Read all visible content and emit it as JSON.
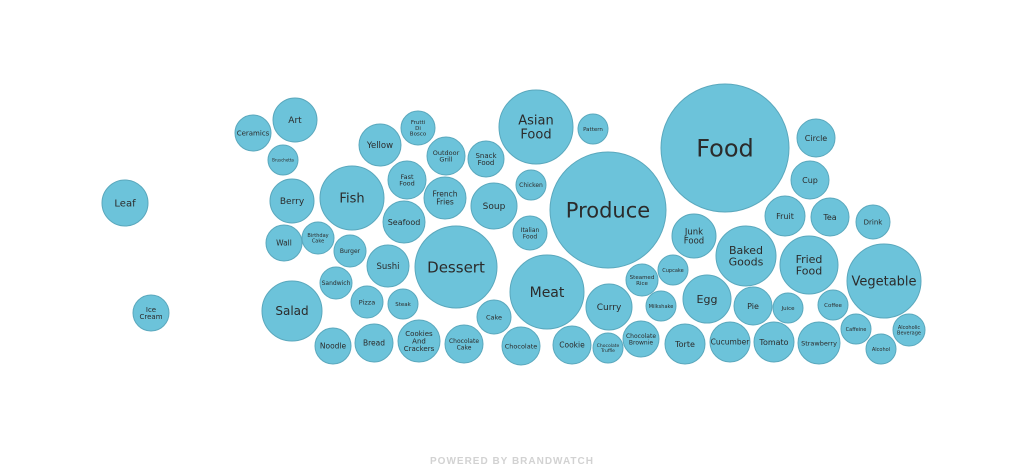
{
  "chart_data": {
    "type": "bubble",
    "color": "#6cc3da",
    "stroke_color": "#5aa8bd",
    "items": [
      {
        "label": "Food"
      },
      {
        "label": "Produce"
      },
      {
        "label": "Vegetable"
      },
      {
        "label": "Dessert"
      },
      {
        "label": "Meat"
      },
      {
        "label": "Asian Food"
      },
      {
        "label": "Fried Food"
      },
      {
        "label": "Baked Goods"
      },
      {
        "label": "Fish"
      },
      {
        "label": "Salad"
      },
      {
        "label": "Egg"
      },
      {
        "label": "Leaf"
      },
      {
        "label": "Circle"
      },
      {
        "label": "Cup"
      },
      {
        "label": "Fruit"
      },
      {
        "label": "Tea"
      },
      {
        "label": "Drink"
      },
      {
        "label": "Junk Food"
      },
      {
        "label": "Soup"
      },
      {
        "label": "Curry"
      },
      {
        "label": "Berry"
      },
      {
        "label": "Seafood"
      },
      {
        "label": "Sushi"
      },
      {
        "label": "French Fries"
      },
      {
        "label": "Yellow"
      },
      {
        "label": "Art"
      },
      {
        "label": "Ceramics"
      },
      {
        "label": "Bruschetta"
      },
      {
        "label": "Frutti Di Bosco"
      },
      {
        "label": "Outdoor Grill"
      },
      {
        "label": "Snack Food"
      },
      {
        "label": "Pattern"
      },
      {
        "label": "Chicken"
      },
      {
        "label": "Italian Food"
      },
      {
        "label": "Fast Food"
      },
      {
        "label": "Wall"
      },
      {
        "label": "Birthday Cake"
      },
      {
        "label": "Burger"
      },
      {
        "label": "Sandwich"
      },
      {
        "label": "Pizza"
      },
      {
        "label": "Steak"
      },
      {
        "label": "Noodle"
      },
      {
        "label": "Bread"
      },
      {
        "label": "Cookies And Crackers"
      },
      {
        "label": "Chocolate Cake"
      },
      {
        "label": "Cake"
      },
      {
        "label": "Chocolate"
      },
      {
        "label": "Cookie"
      },
      {
        "label": "Chocolate Truffle"
      },
      {
        "label": "Chocolate Brownie"
      },
      {
        "label": "Steamed Rice"
      },
      {
        "label": "Cupcake"
      },
      {
        "label": "Milkshake"
      },
      {
        "label": "Torte"
      },
      {
        "label": "Cucumber"
      },
      {
        "label": "Tomato"
      },
      {
        "label": "Strawberry"
      },
      {
        "label": "Pie"
      },
      {
        "label": "Juice"
      },
      {
        "label": "Coffee"
      },
      {
        "label": "Caffeine"
      },
      {
        "label": "Alcoholic Beverage"
      },
      {
        "label": "Alcohol"
      },
      {
        "label": "Ice Cream"
      }
    ]
  },
  "footer": {
    "text": "POWERED BY BRANDWATCH"
  }
}
